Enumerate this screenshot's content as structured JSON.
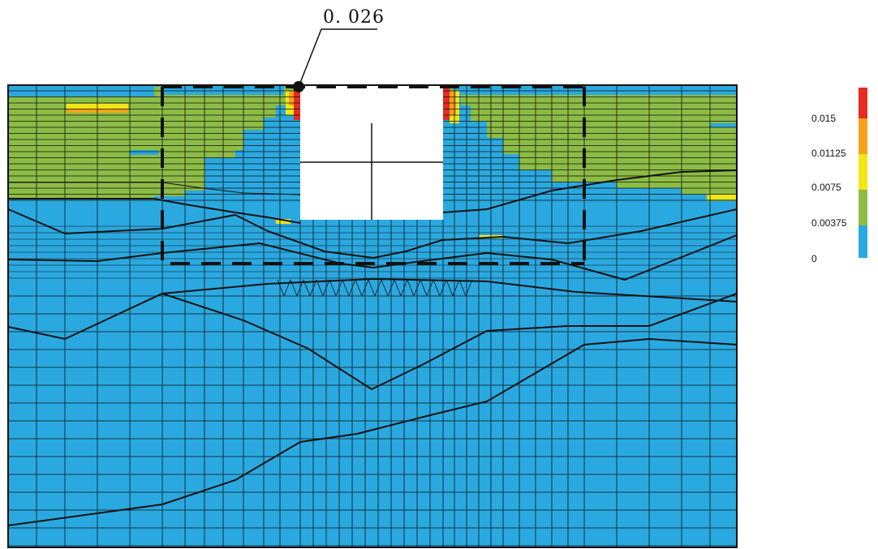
{
  "annotation": {
    "value_label": "0. 026"
  },
  "legend": {
    "labels": [
      "0.015",
      "0.01125",
      "0.0075",
      "0.00375",
      "0"
    ],
    "bands": [
      {
        "name": "red",
        "color": "#e52b22"
      },
      {
        "name": "orange",
        "color": "#f6a21d"
      },
      {
        "name": "yellow",
        "color": "#f1e716"
      },
      {
        "name": "green",
        "color": "#8cbc45"
      },
      {
        "name": "blue",
        "color": "#2aa9e0"
      }
    ]
  },
  "colors": {
    "low_strain": "#2aa9e0",
    "mid_strain": "#8cbc45",
    "high_strain": "#f6a21d",
    "peak_strain": "#e52b22",
    "elevated_strain": "#f1e716",
    "excavation": "#ffffff",
    "mesh_line": "#111111"
  }
}
